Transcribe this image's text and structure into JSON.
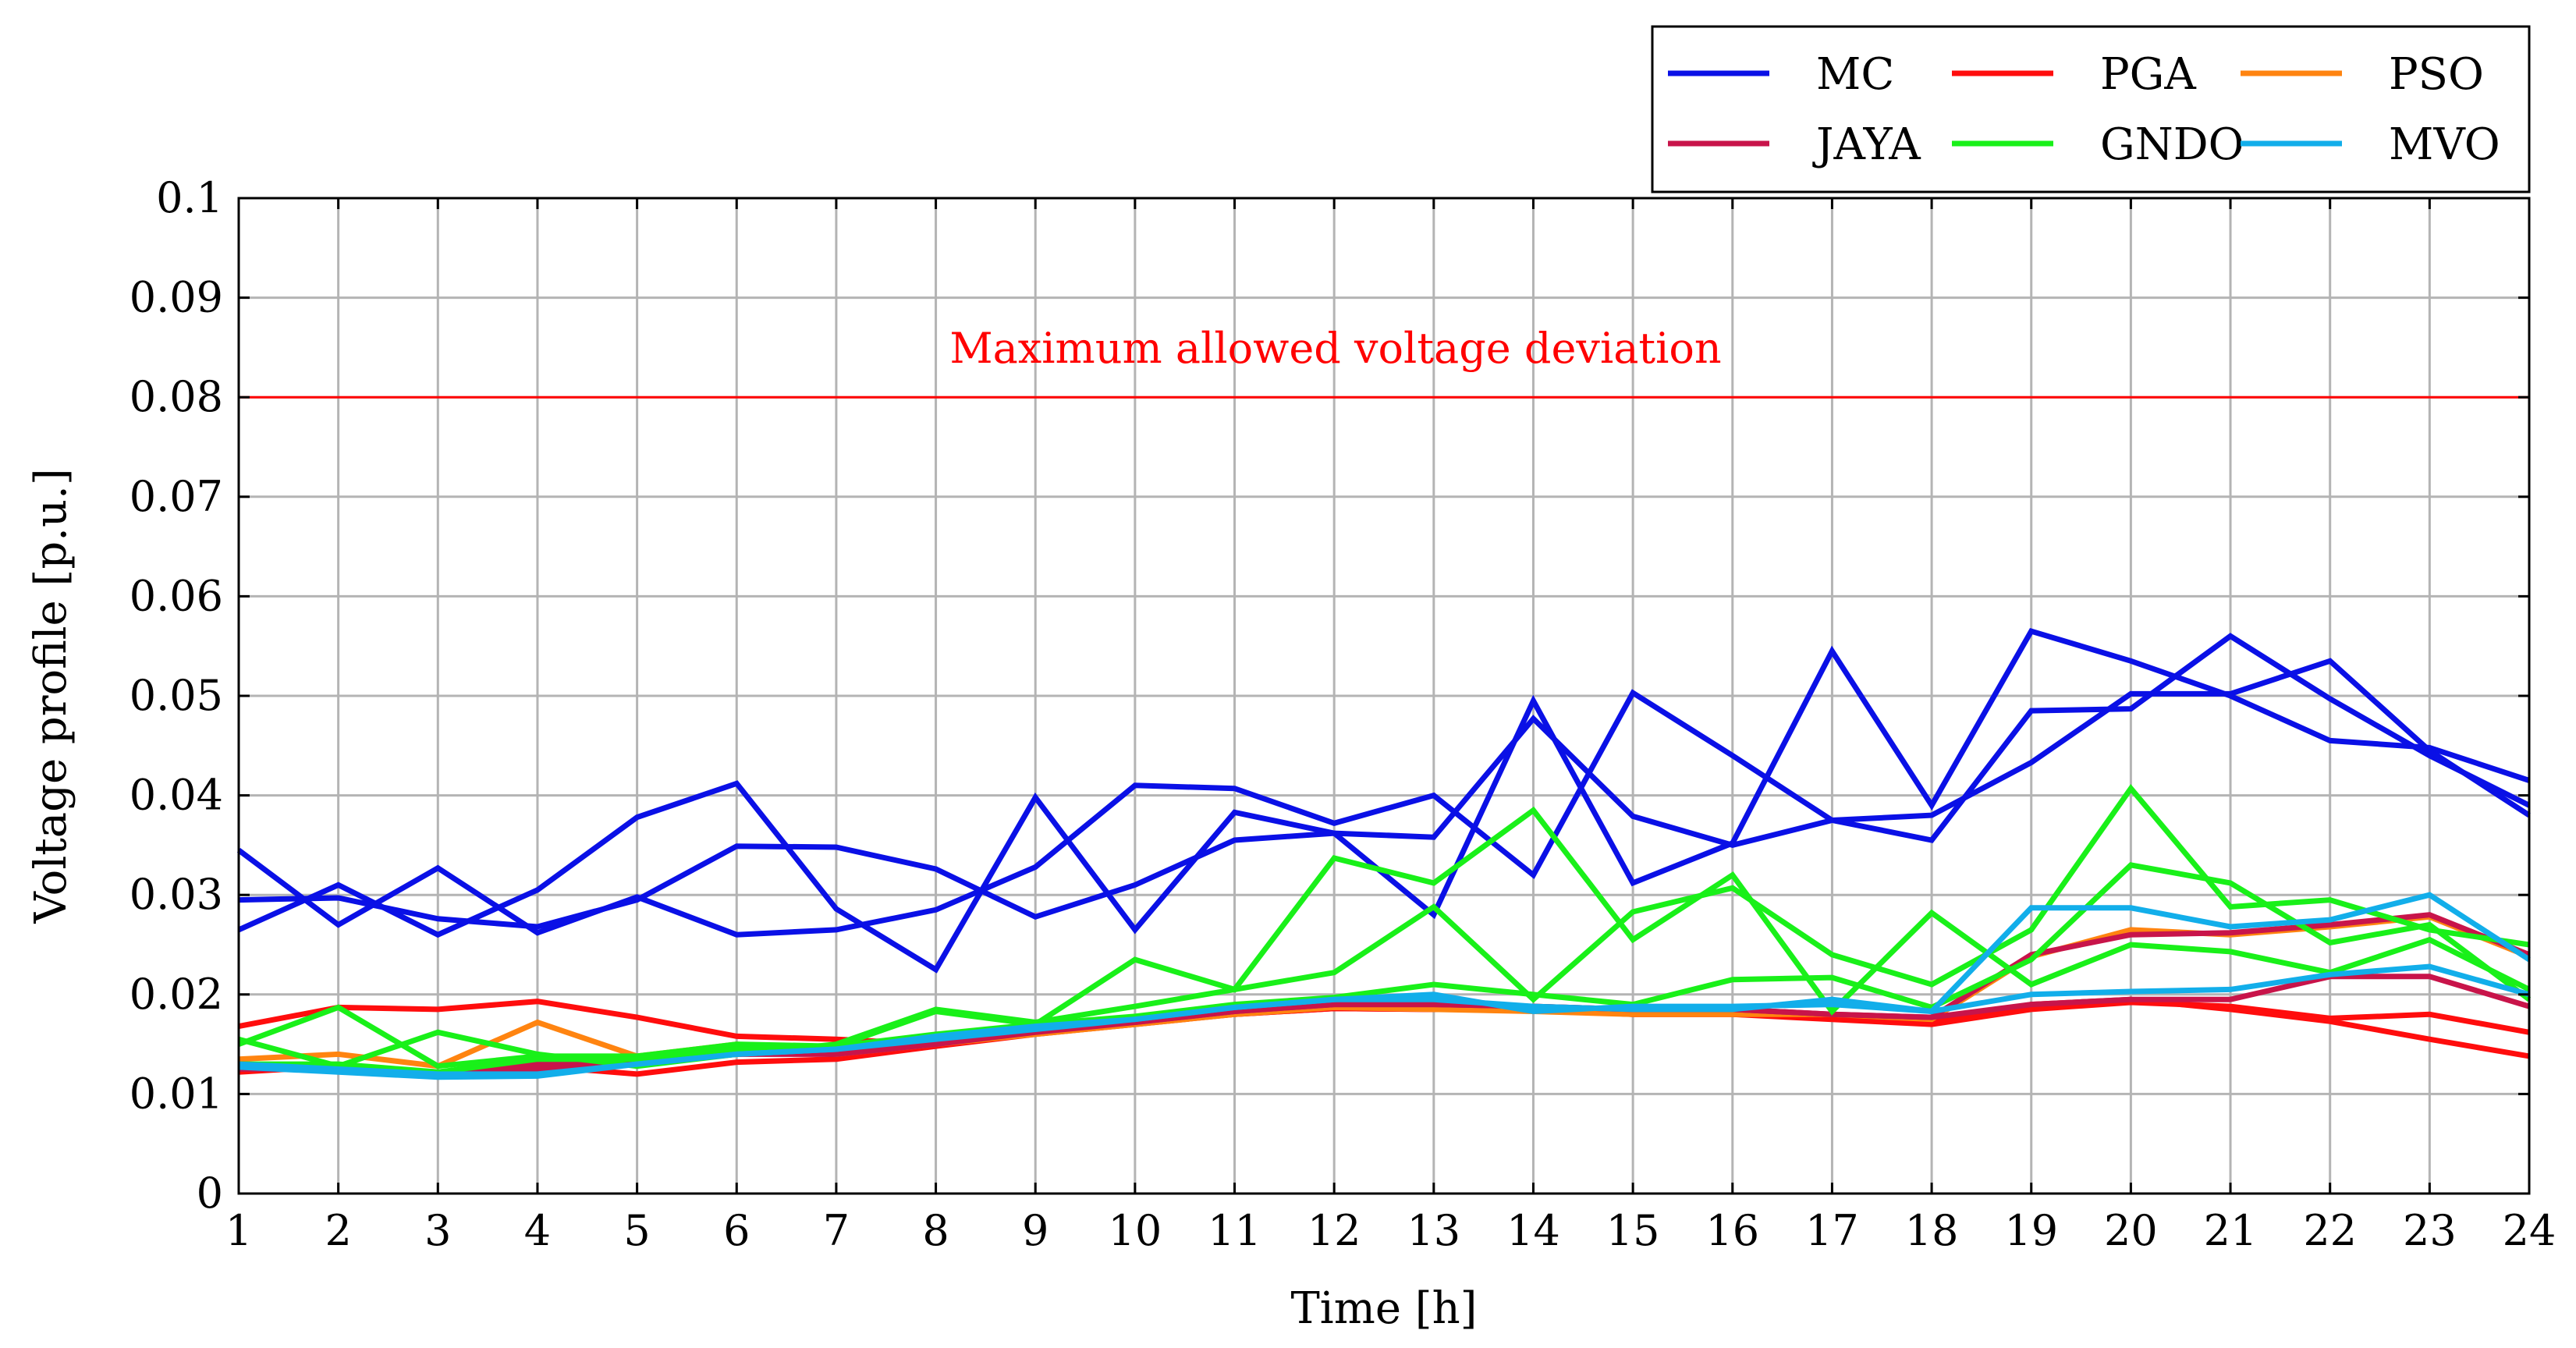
{
  "colors": {
    "MC": "#0a10e6",
    "PGA": "#ff0d0d",
    "PSO": "#ff8410",
    "JAYA": "#c8144a",
    "GNDO": "#19f019",
    "MVO": "#12aeea",
    "limit": "#ff0000",
    "grid": "#b4b4b4",
    "axis": "#000000"
  },
  "chart_data": {
    "type": "line",
    "title": "",
    "xlabel": "Time [h]",
    "ylabel": "Voltage profile [p.u.]",
    "x": [
      1,
      2,
      3,
      4,
      5,
      6,
      7,
      8,
      9,
      10,
      11,
      12,
      13,
      14,
      15,
      16,
      17,
      18,
      19,
      20,
      21,
      22,
      23,
      24
    ],
    "xlim": [
      1,
      24
    ],
    "ylim": [
      0,
      0.1
    ],
    "yticks": [
      0,
      0.01,
      0.02,
      0.03,
      0.04,
      0.05,
      0.06,
      0.07,
      0.08,
      0.09,
      0.1
    ],
    "ytick_labels": [
      "0",
      "0.01",
      "0.02",
      "0.03",
      "0.04",
      "0.05",
      "0.06",
      "0.07",
      "0.08",
      "0.09",
      "0.1"
    ],
    "xtick_labels": [
      "1",
      "2",
      "3",
      "4",
      "5",
      "6",
      "7",
      "8",
      "9",
      "10",
      "11",
      "12",
      "13",
      "14",
      "15",
      "16",
      "17",
      "18",
      "19",
      "20",
      "21",
      "22",
      "23",
      "24"
    ],
    "grid": true,
    "legend_position": "top-right, above plot",
    "legend": [
      "MC",
      "PGA",
      "PSO",
      "JAYA",
      "GNDO",
      "MVO"
    ],
    "threshold": {
      "value": 0.08,
      "label": "Maximum allowed voltage deviation"
    },
    "series": [
      {
        "name": "MC",
        "values": [
          0.0265,
          0.031,
          0.026,
          0.0305,
          0.0378,
          0.0412,
          0.0286,
          0.0225,
          0.0398,
          0.0265,
          0.0383,
          0.0362,
          0.028,
          0.0495,
          0.0312,
          0.0352,
          0.0545,
          0.039,
          0.0565,
          0.0535,
          0.05,
          0.0455,
          0.0448,
          0.0415
        ]
      },
      {
        "name": "MC",
        "values": [
          0.0345,
          0.027,
          0.0327,
          0.0262,
          0.0298,
          0.026,
          0.0265,
          0.0285,
          0.0328,
          0.041,
          0.0407,
          0.0372,
          0.04,
          0.032,
          0.0503,
          0.044,
          0.0375,
          0.0355,
          0.0485,
          0.0487,
          0.056,
          0.0497,
          0.044,
          0.039
        ]
      },
      {
        "name": "MC",
        "values": [
          0.0295,
          0.0297,
          0.0276,
          0.0268,
          0.0295,
          0.0349,
          0.0348,
          0.0326,
          0.0278,
          0.031,
          0.0355,
          0.0362,
          0.0358,
          0.0477,
          0.0379,
          0.035,
          0.0375,
          0.038,
          0.0433,
          0.0502,
          0.0502,
          0.0535,
          0.0445,
          0.038
        ]
      },
      {
        "name": "PGA",
        "values": [
          0.0168,
          0.0187,
          0.0185,
          0.0193,
          0.0177,
          0.0158,
          0.0155,
          0.015,
          0.0162,
          0.0172,
          0.018,
          0.0186,
          0.0185,
          0.0185,
          0.018,
          0.018,
          0.0175,
          0.017,
          0.0185,
          0.0192,
          0.0188,
          0.0176,
          0.018,
          0.0162
        ]
      },
      {
        "name": "PGA",
        "values": [
          0.0122,
          0.0128,
          0.012,
          0.0128,
          0.012,
          0.0132,
          0.0135,
          0.0148,
          0.016,
          0.017,
          0.018,
          0.0186,
          0.0185,
          0.0185,
          0.018,
          0.018,
          0.0177,
          0.0173,
          0.019,
          0.0195,
          0.0185,
          0.0173,
          0.0155,
          0.0138
        ]
      },
      {
        "name": "PSO",
        "values": [
          0.0135,
          0.014,
          0.0128,
          0.0172,
          0.0138,
          0.015,
          0.014,
          0.015,
          0.016,
          0.017,
          0.018,
          0.0187,
          0.0185,
          0.0183,
          0.018,
          0.018,
          0.018,
          0.0175,
          0.0238,
          0.0265,
          0.026,
          0.0268,
          0.0278,
          0.0238
        ]
      },
      {
        "name": "JAYA",
        "values": [
          0.0125,
          0.0125,
          0.0122,
          0.0125,
          0.013,
          0.014,
          0.0145,
          0.0155,
          0.0165,
          0.0172,
          0.0183,
          0.019,
          0.019,
          0.0188,
          0.0185,
          0.0185,
          0.018,
          0.0177,
          0.024,
          0.026,
          0.0262,
          0.027,
          0.028,
          0.024
        ]
      },
      {
        "name": "JAYA",
        "values": [
          0.013,
          0.0128,
          0.0122,
          0.013,
          0.0135,
          0.014,
          0.014,
          0.015,
          0.0162,
          0.0172,
          0.0183,
          0.019,
          0.019,
          0.0188,
          0.0185,
          0.0185,
          0.018,
          0.0177,
          0.019,
          0.0195,
          0.0195,
          0.0218,
          0.0218,
          0.0188
        ]
      },
      {
        "name": "GNDO",
        "values": [
          0.015,
          0.0187,
          0.0128,
          0.0138,
          0.0138,
          0.015,
          0.0148,
          0.0183,
          0.017,
          0.0235,
          0.0205,
          0.0337,
          0.0312,
          0.0385,
          0.0255,
          0.032,
          0.0183,
          0.0282,
          0.021,
          0.025,
          0.0243,
          0.0222,
          0.0255,
          0.0205
        ]
      },
      {
        "name": "GNDO",
        "values": [
          0.0155,
          0.0128,
          0.0162,
          0.014,
          0.0128,
          0.014,
          0.015,
          0.0185,
          0.0172,
          0.0188,
          0.0205,
          0.0222,
          0.0288,
          0.0195,
          0.0283,
          0.0307,
          0.024,
          0.021,
          0.0265,
          0.0407,
          0.0288,
          0.0295,
          0.0265,
          0.025
        ]
      },
      {
        "name": "GNDO",
        "values": [
          0.013,
          0.013,
          0.0122,
          0.0135,
          0.0135,
          0.0145,
          0.0148,
          0.016,
          0.017,
          0.0178,
          0.019,
          0.0197,
          0.021,
          0.02,
          0.019,
          0.0215,
          0.0217,
          0.0187,
          0.0235,
          0.033,
          0.0312,
          0.0252,
          0.027,
          0.0195
        ]
      },
      {
        "name": "MVO",
        "values": [
          0.0127,
          0.0122,
          0.0117,
          0.0118,
          0.013,
          0.014,
          0.0145,
          0.0155,
          0.0165,
          0.0175,
          0.0187,
          0.0195,
          0.02,
          0.0183,
          0.0188,
          0.0188,
          0.019,
          0.0183,
          0.0287,
          0.0287,
          0.0268,
          0.0275,
          0.03,
          0.0235
        ]
      },
      {
        "name": "MVO",
        "values": [
          0.013,
          0.0125,
          0.012,
          0.012,
          0.013,
          0.014,
          0.0145,
          0.0158,
          0.0168,
          0.0175,
          0.0187,
          0.0195,
          0.0195,
          0.0188,
          0.0185,
          0.0185,
          0.0195,
          0.0183,
          0.02,
          0.0203,
          0.0205,
          0.022,
          0.0228,
          0.02
        ]
      }
    ]
  }
}
